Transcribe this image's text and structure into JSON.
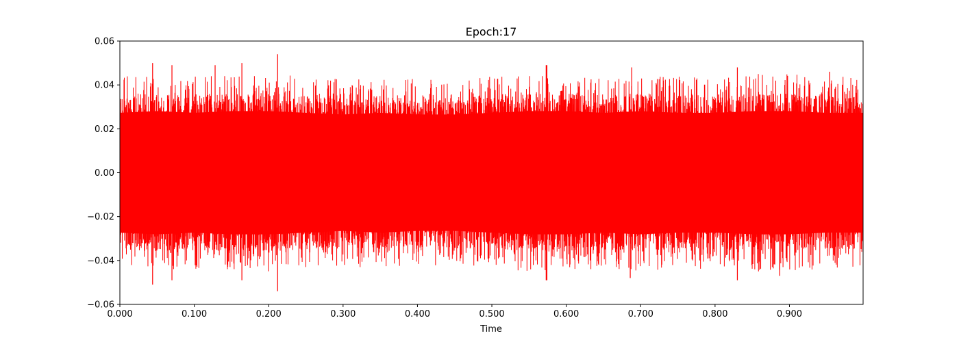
{
  "chart_data": {
    "type": "line",
    "title": "Epoch:17",
    "xlabel": "Time",
    "ylabel": "",
    "xlim": [
      0.0,
      0.999
    ],
    "ylim": [
      -0.06,
      0.06
    ],
    "x_ticks": [
      0.0,
      0.1,
      0.2,
      0.3,
      0.4,
      0.5,
      0.6,
      0.7,
      0.8,
      0.9
    ],
    "x_tick_labels": [
      "0.000",
      "0.100",
      "0.200",
      "0.300",
      "0.400",
      "0.500",
      "0.600",
      "0.700",
      "0.800",
      "0.900"
    ],
    "y_ticks": [
      -0.06,
      -0.04,
      -0.02,
      0.0,
      0.02,
      0.04,
      0.06
    ],
    "y_tick_labels": [
      "−0.06",
      "−0.04",
      "−0.02",
      "0.00",
      "0.02",
      "0.04",
      "0.06"
    ],
    "grid": false,
    "series": [
      {
        "color": "#ff0000",
        "description_free": true,
        "envelope": {
          "x": [
            0.0,
            0.05,
            0.1,
            0.15,
            0.2,
            0.25,
            0.3,
            0.35,
            0.4,
            0.45,
            0.5,
            0.55,
            0.6,
            0.65,
            0.7,
            0.75,
            0.8,
            0.85,
            0.9,
            0.95,
            0.999
          ],
          "typical_max": [
            0.035,
            0.036,
            0.035,
            0.036,
            0.036,
            0.035,
            0.034,
            0.035,
            0.034,
            0.034,
            0.035,
            0.036,
            0.036,
            0.035,
            0.036,
            0.035,
            0.035,
            0.036,
            0.036,
            0.035,
            0.035
          ],
          "typical_min": [
            -0.035,
            -0.036,
            -0.035,
            -0.036,
            -0.036,
            -0.035,
            -0.034,
            -0.035,
            -0.034,
            -0.034,
            -0.035,
            -0.036,
            -0.036,
            -0.035,
            -0.036,
            -0.035,
            -0.035,
            -0.036,
            -0.036,
            -0.035,
            -0.035
          ]
        },
        "peaks": [
          {
            "x": 0.044,
            "y": 0.05
          },
          {
            "x": 0.044,
            "y": -0.051
          },
          {
            "x": 0.07,
            "y": 0.049
          },
          {
            "x": 0.07,
            "y": -0.049
          },
          {
            "x": 0.128,
            "y": 0.049
          },
          {
            "x": 0.164,
            "y": 0.05
          },
          {
            "x": 0.164,
            "y": -0.049
          },
          {
            "x": 0.212,
            "y": 0.054
          },
          {
            "x": 0.212,
            "y": -0.054
          },
          {
            "x": 0.573,
            "y": 0.049
          },
          {
            "x": 0.573,
            "y": -0.049
          },
          {
            "x": 0.574,
            "y": -0.049
          },
          {
            "x": 0.574,
            "y": 0.049
          },
          {
            "x": 0.686,
            "y": -0.048
          },
          {
            "x": 0.688,
            "y": 0.048
          },
          {
            "x": 0.83,
            "y": 0.048
          },
          {
            "x": 0.83,
            "y": -0.049
          },
          {
            "x": 0.887,
            "y": -0.047
          },
          {
            "x": 0.954,
            "y": 0.046
          }
        ]
      }
    ]
  }
}
